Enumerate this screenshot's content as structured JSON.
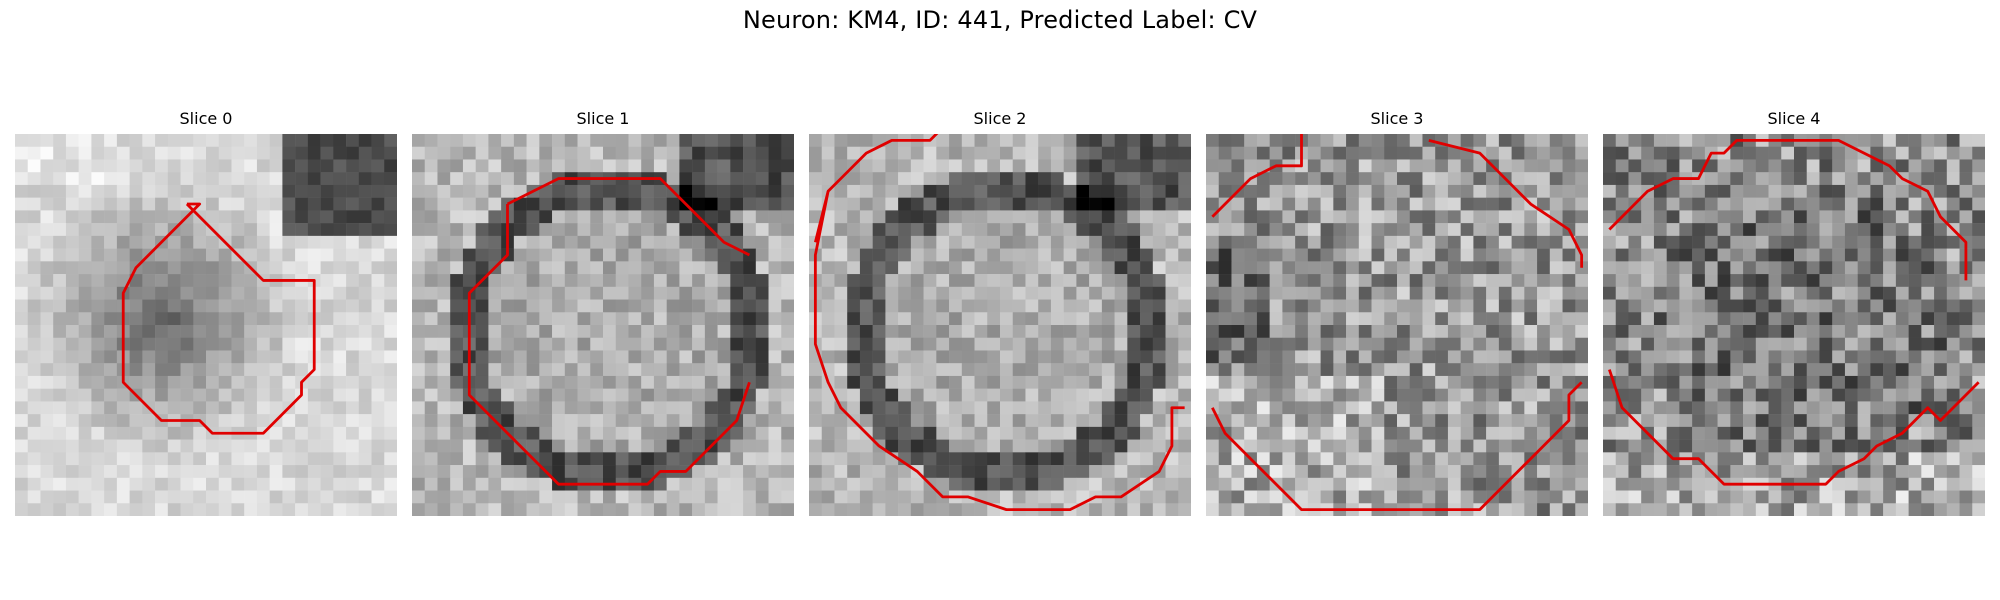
{
  "figure": {
    "title": "Neuron: KM4, ID: 441, Predicted Label: CV"
  },
  "colors": {
    "contour": "#e00000",
    "background": "#ffffff"
  },
  "panels": [
    {
      "title": "Slice 0",
      "pattern": "outer-bright",
      "seed": 11,
      "contour": [
        [
          13.5,
          5.5
        ],
        [
          14.5,
          6.5
        ],
        [
          16.5,
          8.5
        ],
        [
          19.5,
          11.5
        ],
        [
          23.5,
          11.5
        ],
        [
          23.5,
          18.5
        ],
        [
          22.5,
          19.5
        ],
        [
          22.5,
          20.5
        ],
        [
          19.5,
          23.5
        ],
        [
          15.5,
          23.5
        ],
        [
          14.5,
          22.5
        ],
        [
          11.5,
          22.5
        ],
        [
          8.5,
          19.5
        ],
        [
          8.5,
          12.5
        ],
        [
          9.5,
          10.5
        ],
        [
          14.5,
          5.5
        ],
        [
          13.5,
          5.5
        ]
      ]
    },
    {
      "title": "Slice 1",
      "pattern": "bright-center",
      "seed": 23,
      "contour": [
        [
          7.5,
          5.5
        ],
        [
          11.5,
          3.5
        ],
        [
          19.5,
          3.5
        ],
        [
          21.5,
          5.5
        ],
        [
          24.5,
          8.5
        ],
        [
          26.5,
          9.5
        ],
        [
          26.5,
          19.5
        ],
        [
          25.5,
          22.5
        ],
        [
          23.5,
          24.5
        ],
        [
          21.5,
          26.5
        ],
        [
          19.5,
          26.5
        ],
        [
          18.5,
          27.5
        ],
        [
          11.5,
          27.5
        ],
        [
          6.5,
          22.5
        ],
        [
          4.5,
          20.5
        ],
        [
          4.5,
          12.5
        ],
        [
          7.5,
          9.5
        ],
        [
          7.5,
          5.5
        ]
      ]
    },
    {
      "title": "Slice 2",
      "pattern": "bright-center",
      "seed": 37,
      "contour": [
        [
          1.5,
          4.5
        ],
        [
          2.5,
          3.5
        ],
        [
          4.5,
          1.5
        ],
        [
          6.5,
          0.5
        ],
        [
          9.5,
          0.5
        ],
        [
          10.5,
          -0.5
        ],
        [
          21.5,
          -0.5
        ],
        [
          28.5,
          8.5
        ],
        [
          0.5,
          8.5
        ],
        [
          1.5,
          4.5
        ],
        [
          0.5,
          9.5
        ],
        [
          0.5,
          16.5
        ],
        [
          1.5,
          19.5
        ],
        [
          2.5,
          21.5
        ],
        [
          5.5,
          24.5
        ],
        [
          8.5,
          26.5
        ],
        [
          10.5,
          28.5
        ],
        [
          12.5,
          28.5
        ],
        [
          15.5,
          29.5
        ],
        [
          20.5,
          29.5
        ],
        [
          22.5,
          28.5
        ],
        [
          24.5,
          28.5
        ],
        [
          27.5,
          26.5
        ],
        [
          28.5,
          24.5
        ],
        [
          28.5,
          21.5
        ],
        [
          29.5,
          21.5
        ]
      ]
    },
    {
      "title": "Slice 3",
      "pattern": "noisy",
      "seed": 53,
      "contour": [
        [
          7.5,
          -0.5
        ],
        [
          7.5,
          2.5
        ],
        [
          5.5,
          2.5
        ],
        [
          3.5,
          3.5
        ],
        [
          1.5,
          5.5
        ],
        [
          0.5,
          6.5
        ],
        [
          17.5,
          0.5
        ],
        [
          21.5,
          1.5
        ],
        [
          23.5,
          3.5
        ],
        [
          25.5,
          5.5
        ],
        [
          28.5,
          7.5
        ],
        [
          29.5,
          9.5
        ],
        [
          29.5,
          10.5
        ],
        [
          0.5,
          21.5
        ],
        [
          1.5,
          23.5
        ],
        [
          3.5,
          25.5
        ],
        [
          6.5,
          28.5
        ],
        [
          7.5,
          29.5
        ],
        [
          13.5,
          29.5
        ],
        [
          14.5,
          29.5
        ],
        [
          21.5,
          29.5
        ],
        [
          22.5,
          28.5
        ],
        [
          25.5,
          25.5
        ],
        [
          28.5,
          22.5
        ],
        [
          28.5,
          20.5
        ],
        [
          29.5,
          19.5
        ]
      ]
    },
    {
      "title": "Slice 4",
      "pattern": "noisy-dark",
      "seed": 71,
      "contour": [
        [
          0.5,
          7.5
        ],
        [
          3.5,
          4.5
        ],
        [
          5.5,
          3.5
        ],
        [
          7.5,
          3.5
        ],
        [
          8.5,
          1.5
        ],
        [
          9.5,
          1.5
        ],
        [
          10.5,
          0.5
        ],
        [
          12.5,
          0.5
        ],
        [
          18.5,
          0.5
        ],
        [
          20.5,
          1.5
        ],
        [
          22.5,
          2.5
        ],
        [
          23.5,
          3.5
        ],
        [
          25.5,
          4.5
        ],
        [
          26.5,
          6.5
        ],
        [
          28.5,
          8.5
        ],
        [
          28.5,
          11.5
        ],
        [
          0.5,
          18.5
        ],
        [
          1.5,
          21.5
        ],
        [
          3.5,
          23.5
        ],
        [
          5.5,
          25.5
        ],
        [
          7.5,
          25.5
        ],
        [
          9.5,
          27.5
        ],
        [
          10.5,
          27.5
        ],
        [
          17.5,
          27.5
        ],
        [
          18.5,
          26.5
        ],
        [
          20.5,
          25.5
        ],
        [
          21.5,
          24.5
        ],
        [
          23.5,
          23.5
        ],
        [
          25.5,
          21.5
        ],
        [
          26.5,
          22.5
        ],
        [
          27.5,
          21.5
        ],
        [
          28.5,
          20.5
        ],
        [
          29.5,
          19.5
        ]
      ]
    }
  ]
}
